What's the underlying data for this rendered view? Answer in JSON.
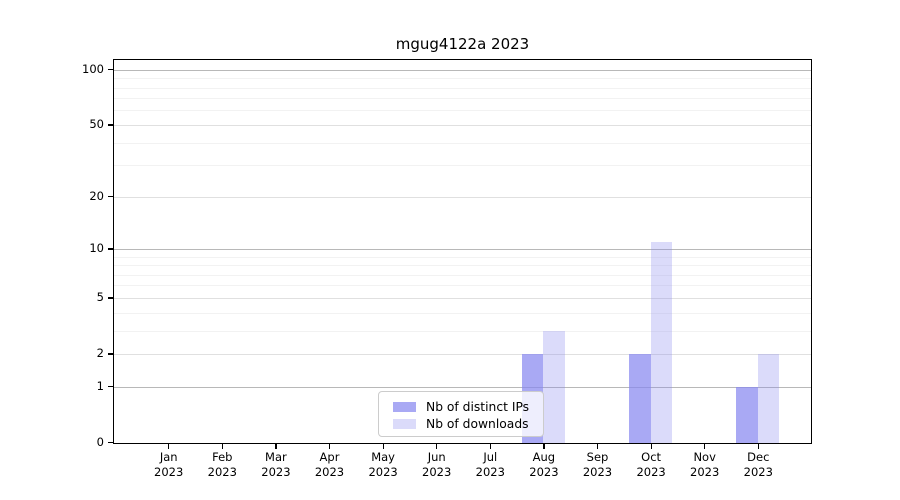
{
  "title": "mgug4122a 2023",
  "chart_data": {
    "type": "bar",
    "title": "mgug4122a 2023",
    "categories": [
      "Jan",
      "Feb",
      "Mar",
      "Apr",
      "May",
      "Jun",
      "Jul",
      "Aug",
      "Sep",
      "Oct",
      "Nov",
      "Dec"
    ],
    "x_year": "2023",
    "series": [
      {
        "name": "Nb of distinct IPs",
        "values": [
          0,
          0,
          0,
          0,
          0,
          0,
          0,
          2,
          0,
          2,
          0,
          1
        ],
        "color": "#8888f0",
        "alpha": 0.72
      },
      {
        "name": "Nb of downloads",
        "values": [
          0,
          0,
          0,
          0,
          0,
          0,
          0,
          3,
          0,
          11,
          0,
          2
        ],
        "color": "#8888f0",
        "alpha": 0.3
      }
    ],
    "y_axis": {
      "scale": "log1p",
      "tick_labels": [
        "100",
        "50",
        "20",
        "10",
        "5",
        "2",
        "1",
        "0"
      ],
      "tick_values": [
        100,
        50,
        20,
        10,
        5,
        2,
        1,
        0
      ],
      "major_gridlines": [
        1,
        10,
        100
      ],
      "mid_gridlines": [
        2,
        5,
        20,
        50
      ],
      "minor_gridlines": [
        3,
        4,
        6,
        7,
        8,
        9,
        30,
        40,
        60,
        70,
        80,
        90
      ],
      "ylim": [
        0,
        115
      ]
    },
    "legend": {
      "position": "lower center inside axes",
      "entries": [
        "Nb of distinct IPs",
        "Nb of downloads"
      ]
    },
    "grid": "on"
  },
  "colors": {
    "bar_base": "#8888f0",
    "grid_major": "#b8b8b8",
    "grid_mid": "#e0e0e0",
    "grid_minor": "#f2f2f2",
    "spine": "#000000",
    "legend_border": "#cccccc"
  }
}
